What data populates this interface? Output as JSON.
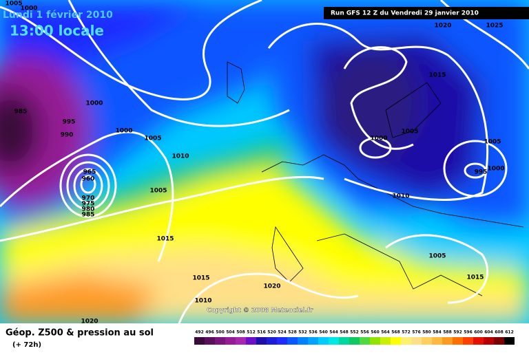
{
  "header": {
    "date": "Lundi 1 février 2010",
    "time": "13:00 locale",
    "run": "Run GFS 12 Z du Vendredi 29 janvier 2010"
  },
  "copyright": "Copyright © 2008 Meteociel.fr",
  "isobar_labels": [
    1005,
    1000,
    985,
    995,
    990,
    1000,
    1000,
    1005,
    1010,
    965,
    960,
    970,
    975,
    980,
    985,
    1005,
    1015,
    1015,
    1010,
    1020,
    1020,
    1020,
    1025,
    1015,
    1005,
    1000,
    1005,
    995,
    1000,
    1010,
    1005,
    1015
  ],
  "footer": {
    "title": "Géop. Z500 & pression au sol",
    "lead": "(+ 72h)"
  },
  "legend": {
    "values": [
      492,
      496,
      500,
      504,
      508,
      512,
      516,
      520,
      524,
      528,
      532,
      536,
      540,
      544,
      548,
      552,
      556,
      560,
      564,
      568,
      572,
      576,
      580,
      584,
      588,
      592,
      596,
      600,
      604,
      608,
      612
    ],
    "colors": [
      "#3a0a3a",
      "#5a105a",
      "#7a167a",
      "#951c95",
      "#a826b0",
      "#6a10c8",
      "#1c10a8",
      "#1e1ed8",
      "#1f2cff",
      "#0a56ff",
      "#0082ff",
      "#00a4ff",
      "#00ccff",
      "#00e8e4",
      "#00d8a0",
      "#10c860",
      "#50d840",
      "#90e400",
      "#c8f000",
      "#ffff00",
      "#fff070",
      "#ffe088",
      "#ffd060",
      "#ffb840",
      "#ff9a20",
      "#ff7000",
      "#ff4000",
      "#e41000",
      "#b80000",
      "#7a0000",
      "#000000"
    ]
  }
}
